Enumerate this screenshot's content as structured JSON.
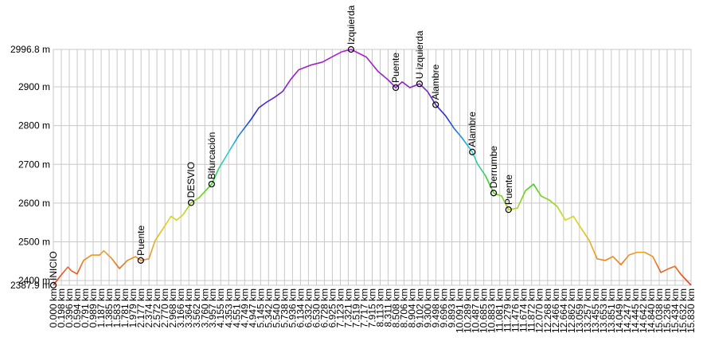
{
  "chart_data": {
    "type": "line",
    "x": [
      0,
      0.16,
      0.36,
      0.45,
      0.59,
      0.75,
      0.95,
      1.15,
      1.25,
      1.44,
      1.64,
      1.84,
      2.04,
      2.17,
      2.37,
      2.53,
      2.73,
      2.92,
      3.06,
      3.22,
      3.42,
      3.62,
      3.93,
      4.11,
      4.41,
      4.6,
      4.9,
      5.1,
      5.3,
      5.49,
      5.69,
      5.89,
      6.09,
      6.38,
      6.68,
      6.98,
      7.17,
      7.39,
      7.77,
      8.06,
      8.3,
      8.5,
      8.66,
      8.85,
      9.09,
      9.29,
      9.49,
      9.74,
      9.94,
      10.14,
      10.4,
      10.53,
      10.73,
      10.93,
      11.13,
      11.3,
      11.52,
      11.72,
      11.92,
      12.11,
      12.31,
      12.51,
      12.71,
      12.91,
      13.1,
      13.3,
      13.5,
      13.7,
      13.89,
      14.09,
      14.29,
      14.49,
      14.68,
      14.88,
      15.08,
      15.28,
      15.43,
      15.57,
      15.83
    ],
    "series": [
      {
        "values": [
          2387.9,
          2410,
          2435,
          2425,
          2417,
          2452,
          2466,
          2466,
          2477,
          2458,
          2431,
          2452,
          2462,
          2452,
          2456,
          2504,
          2535,
          2566,
          2556,
          2570,
          2601,
          2614,
          2649,
          2690,
          2742,
          2774,
          2815,
          2846,
          2861,
          2873,
          2888,
          2919,
          2944,
          2956,
          2964,
          2981,
          2991,
          2996.8,
          2977,
          2940,
          2919,
          2898,
          2913,
          2898,
          2908,
          2888,
          2854,
          2825,
          2794,
          2769,
          2732,
          2701,
          2670,
          2626,
          2618,
          2583,
          2587,
          2632,
          2649,
          2618,
          2608,
          2591,
          2556,
          2566,
          2535,
          2504,
          2456,
          2452,
          2462,
          2441,
          2466,
          2473,
          2473,
          2462,
          2421,
          2431,
          2437,
          2417,
          2388
        ]
      }
    ],
    "colorscale": [
      "#e8321e",
      "#f0a020",
      "#d8d820",
      "#40d020",
      "#20d0e8",
      "#2030d0",
      "#9020d0",
      "#b020c8"
    ],
    "waypoints": [
      {
        "label": "INICIO",
        "x": 0,
        "y": 2387.9
      },
      {
        "label": "Puente",
        "x": 2.17,
        "y": 2452
      },
      {
        "label": "DESVIO",
        "x": 3.42,
        "y": 2601
      },
      {
        "label": "Bifurcación",
        "x": 3.93,
        "y": 2649
      },
      {
        "label": "Izquierda",
        "x": 7.39,
        "y": 2996.8
      },
      {
        "label": "Puente",
        "x": 8.5,
        "y": 2898
      },
      {
        "label": "U izquierda",
        "x": 9.09,
        "y": 2908
      },
      {
        "label": "Alambre",
        "x": 9.49,
        "y": 2854
      },
      {
        "label": "Alambre",
        "x": 10.4,
        "y": 2732
      },
      {
        "label": "Derrumbe",
        "x": 10.93,
        "y": 2626
      },
      {
        "label": "Puente",
        "x": 11.3,
        "y": 2583
      }
    ],
    "xlim": [
      0,
      15.83
    ],
    "ylim": [
      2387.9,
      2996.8
    ],
    "yticks": [
      {
        "value": 2387.9,
        "label": "2387.9 m"
      },
      {
        "value": 2400,
        "label": "2400 m"
      },
      {
        "value": 2500,
        "label": "2500 m"
      },
      {
        "value": 2600,
        "label": "2600 m"
      },
      {
        "value": 2700,
        "label": "2700 m"
      },
      {
        "value": 2800,
        "label": "2800 m"
      },
      {
        "value": 2900,
        "label": "2900 m"
      },
      {
        "value": 2996.8,
        "label": "2996.8 m"
      }
    ],
    "xticks": [
      {
        "value": 0,
        "label": "0.000 km"
      },
      {
        "value": 0.198,
        "label": "0.198 km"
      },
      {
        "value": 0.396,
        "label": "0.396 km"
      },
      {
        "value": 0.594,
        "label": "0.594 km"
      },
      {
        "value": 0.791,
        "label": "0.791 km"
      },
      {
        "value": 0.989,
        "label": "0.989 km"
      },
      {
        "value": 1.187,
        "label": "1.187 km"
      },
      {
        "value": 1.385,
        "label": "1.385 km"
      },
      {
        "value": 1.583,
        "label": "1.583 km"
      },
      {
        "value": 1.781,
        "label": "1.781 km"
      },
      {
        "value": 1.979,
        "label": "1.979 km"
      },
      {
        "value": 2.177,
        "label": "2.177 km"
      },
      {
        "value": 2.374,
        "label": "2.374 km"
      },
      {
        "value": 2.572,
        "label": "2.572 km"
      },
      {
        "value": 2.77,
        "label": "2.770 km"
      },
      {
        "value": 2.968,
        "label": "2.968 km"
      },
      {
        "value": 3.166,
        "label": "3.166 km"
      },
      {
        "value": 3.364,
        "label": "3.364 km"
      },
      {
        "value": 3.562,
        "label": "3.562 km"
      },
      {
        "value": 3.76,
        "label": "3.760 km"
      },
      {
        "value": 3.957,
        "label": "3.957 km"
      },
      {
        "value": 4.155,
        "label": "4.155 km"
      },
      {
        "value": 4.353,
        "label": "4.353 km"
      },
      {
        "value": 4.551,
        "label": "4.551 km"
      },
      {
        "value": 4.749,
        "label": "4.749 km"
      },
      {
        "value": 4.947,
        "label": "4.947 km"
      },
      {
        "value": 5.145,
        "label": "5.145 km"
      },
      {
        "value": 5.342,
        "label": "5.342 km"
      },
      {
        "value": 5.54,
        "label": "5.540 km"
      },
      {
        "value": 5.738,
        "label": "5.738 km"
      },
      {
        "value": 5.936,
        "label": "5.936 km"
      },
      {
        "value": 6.134,
        "label": "6.134 km"
      },
      {
        "value": 6.332,
        "label": "6.332 km"
      },
      {
        "value": 6.53,
        "label": "6.530 km"
      },
      {
        "value": 6.728,
        "label": "6.728 km"
      },
      {
        "value": 6.925,
        "label": "6.925 km"
      },
      {
        "value": 7.123,
        "label": "7.123 km"
      },
      {
        "value": 7.321,
        "label": "7.321 km"
      },
      {
        "value": 7.519,
        "label": "7.519 km"
      },
      {
        "value": 7.717,
        "label": "7.717 km"
      },
      {
        "value": 7.915,
        "label": "7.915 km"
      },
      {
        "value": 8.113,
        "label": "8.113 km"
      },
      {
        "value": 8.311,
        "label": "8.311 km"
      },
      {
        "value": 8.508,
        "label": "8.508 km"
      },
      {
        "value": 8.706,
        "label": "8.706 km"
      },
      {
        "value": 8.904,
        "label": "8.904 km"
      },
      {
        "value": 9.102,
        "label": "9.102 km"
      },
      {
        "value": 9.3,
        "label": "9.300 km"
      },
      {
        "value": 9.498,
        "label": "9.498 km"
      },
      {
        "value": 9.696,
        "label": "9.696 km"
      },
      {
        "value": 9.893,
        "label": "9.893 km"
      },
      {
        "value": 10.091,
        "label": "10.091 km"
      },
      {
        "value": 10.289,
        "label": "10.289 km"
      },
      {
        "value": 10.487,
        "label": "10.487 km"
      },
      {
        "value": 10.685,
        "label": "10.685 km"
      },
      {
        "value": 10.883,
        "label": "10.883 km"
      },
      {
        "value": 11.081,
        "label": "11.081 km"
      },
      {
        "value": 11.279,
        "label": "11.279 km"
      },
      {
        "value": 11.476,
        "label": "11.476 km"
      },
      {
        "value": 11.674,
        "label": "11.674 km"
      },
      {
        "value": 11.872,
        "label": "11.872 km"
      },
      {
        "value": 12.07,
        "label": "12.070 km"
      },
      {
        "value": 12.268,
        "label": "12.268 km"
      },
      {
        "value": 12.466,
        "label": "12.466 km"
      },
      {
        "value": 12.664,
        "label": "12.664 km"
      },
      {
        "value": 12.862,
        "label": "12.862 km"
      },
      {
        "value": 13.059,
        "label": "13.059 km"
      },
      {
        "value": 13.257,
        "label": "13.257 km"
      },
      {
        "value": 13.455,
        "label": "13.455 km"
      },
      {
        "value": 13.653,
        "label": "13.653 km"
      },
      {
        "value": 13.851,
        "label": "13.851 km"
      },
      {
        "value": 14.049,
        "label": "14.049 km"
      },
      {
        "value": 14.247,
        "label": "14.247 km"
      },
      {
        "value": 14.445,
        "label": "14.445 km"
      },
      {
        "value": 14.642,
        "label": "14.642 km"
      },
      {
        "value": 14.84,
        "label": "14.840 km"
      },
      {
        "value": 15.038,
        "label": "15.038 km"
      },
      {
        "value": 15.236,
        "label": "15.236 km"
      },
      {
        "value": 15.434,
        "label": "15.434 km"
      },
      {
        "value": 15.632,
        "label": "15.632 km"
      },
      {
        "value": 15.83,
        "label": "15.830 km"
      }
    ],
    "grid": true
  }
}
